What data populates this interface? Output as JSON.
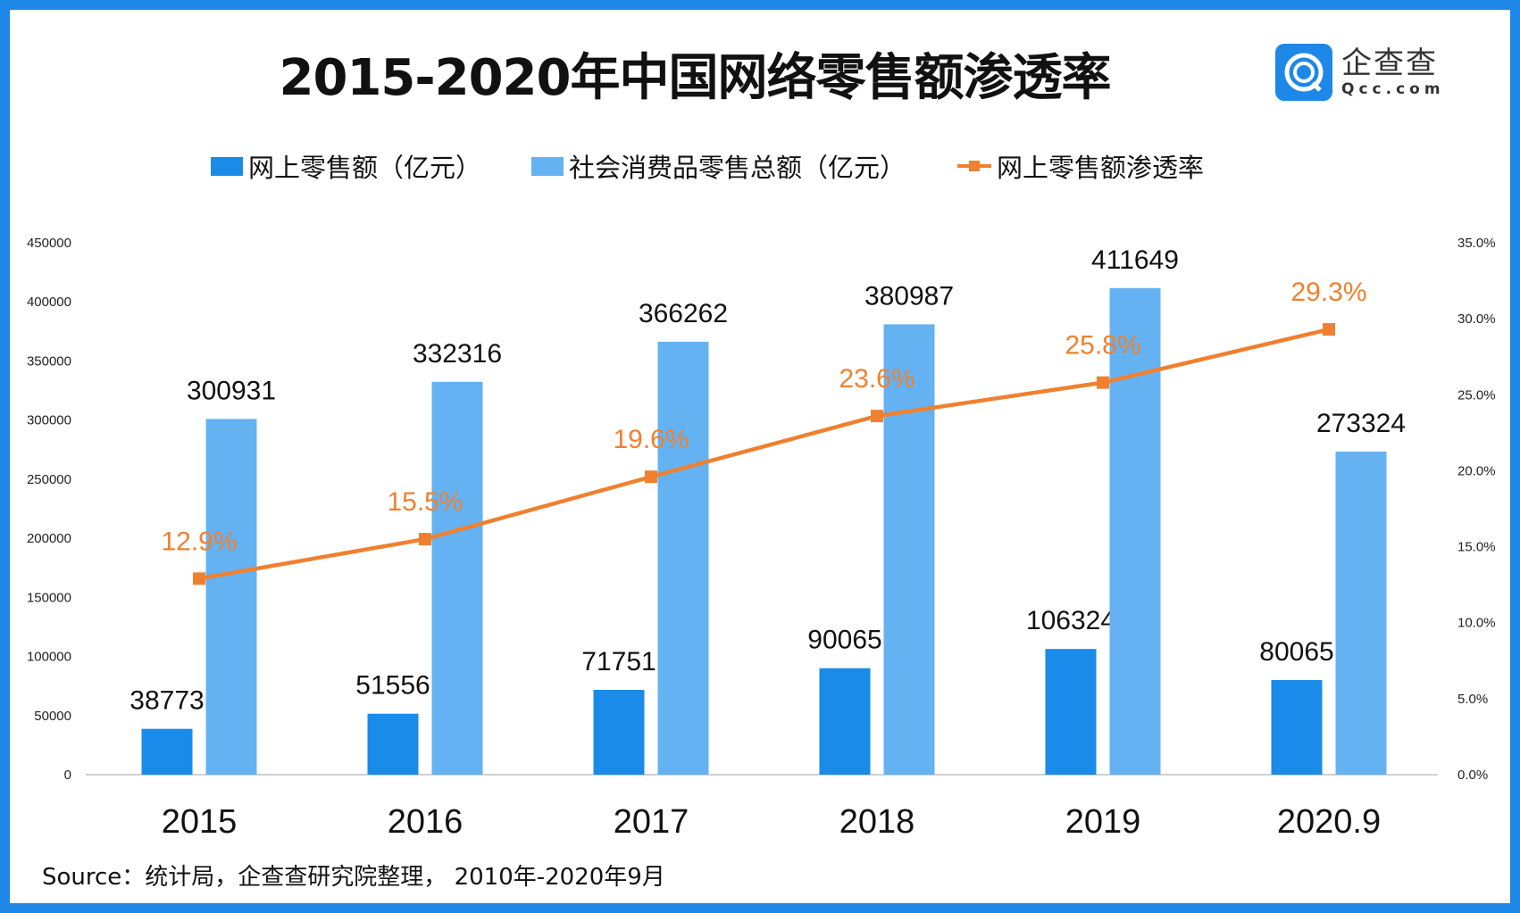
{
  "title": "2015-2020年中国网络零售额渗透率",
  "logo": {
    "cn": "企查查",
    "en": "Qcc.com"
  },
  "source": "Source：统计局，企查查研究院整理， 2010年-2020年9月",
  "colors": {
    "online": "#1a8be8",
    "total": "#64b2f2",
    "rate": "#f0802e",
    "frame": "#1e88e8"
  },
  "chart_data": {
    "type": "bar+line",
    "title": "2015-2020年中国网络零售额渗透率",
    "categories": [
      "2015",
      "2016",
      "2017",
      "2018",
      "2019",
      "2020.9"
    ],
    "series": [
      {
        "name": "网上零售额（亿元）",
        "type": "bar",
        "axis": "left",
        "values": [
          38773,
          51556,
          71751,
          90065,
          106324,
          80065
        ],
        "labels": [
          "38773",
          "51556",
          "71751",
          "90065",
          "106324",
          "80065"
        ]
      },
      {
        "name": "社会消费品零售总额（亿元）",
        "type": "bar",
        "axis": "left",
        "values": [
          300931,
          332316,
          366262,
          380987,
          411649,
          273324
        ],
        "labels": [
          "300931",
          "332316",
          "366262",
          "380987",
          "411649",
          "273324"
        ]
      },
      {
        "name": "网上零售额渗透率",
        "type": "line",
        "axis": "right",
        "values": [
          12.9,
          15.5,
          19.6,
          23.6,
          25.8,
          29.3
        ],
        "labels": [
          "12.9%",
          "15.5%",
          "19.6%",
          "23.6%",
          "25.8%",
          "29.3%"
        ]
      }
    ],
    "ylim_left": [
      0,
      450000
    ],
    "yticks_left": [
      "0",
      "50000",
      "100000",
      "150000",
      "200000",
      "250000",
      "300000",
      "350000",
      "400000",
      "450000"
    ],
    "ylim_right": [
      0,
      35
    ],
    "yticks_right": [
      "0.0%",
      "5.0%",
      "10.0%",
      "15.0%",
      "20.0%",
      "25.0%",
      "30.0%",
      "35.0%"
    ],
    "grid": false,
    "legend": "top"
  }
}
